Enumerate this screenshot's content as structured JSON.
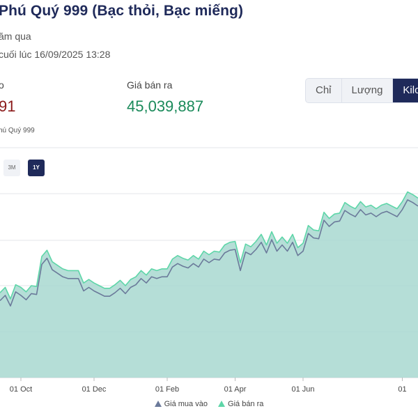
{
  "header": {
    "title": "Phú Quý 999 (Bạc thỏi, Bạc miếng)",
    "subtitle": "ăm qua",
    "updated": "cuối lúc 16/09/2025 13:28"
  },
  "prices": {
    "buy_label": "o",
    "buy_value": "91",
    "sell_label": "Giá bán ra",
    "sell_value": "45,039,887"
  },
  "units": [
    {
      "label": "Chỉ",
      "active": false
    },
    {
      "label": "Lượng",
      "active": false
    },
    {
      "label": "Kilo",
      "active": true
    }
  ],
  "chart_name": "hú Quý 999",
  "ranges": [
    {
      "label": "3M",
      "active": false
    },
    {
      "label": "1Y",
      "active": true
    }
  ],
  "legend": {
    "buy": "Giá mua vào",
    "sell": "Giá bán ra"
  },
  "colors": {
    "buy_line": "#6b7a9a",
    "sell_line": "#5ed6a8",
    "area_fill": "#a8d8d0",
    "accent": "#1f2a5a"
  },
  "chart_data": {
    "type": "area",
    "title": "",
    "xlabel": "",
    "ylabel": "",
    "x_tick_labels": [
      "01 Oct",
      "01 Dec",
      "01 Feb",
      "01 Apr",
      "01 Jun",
      "01"
    ],
    "grid": true,
    "legend_position": "bottom",
    "x": [
      "Sep 15",
      "Sep 18",
      "Sep 22",
      "Sep 26",
      "Oct 1",
      "Oct 5",
      "Oct 10",
      "Oct 14",
      "Oct 18",
      "Oct 22",
      "Oct 26",
      "Oct 30",
      "Nov 3",
      "Nov 8",
      "Nov 12",
      "Nov 16",
      "Nov 20",
      "Nov 25",
      "Dec 1",
      "Dec 5",
      "Dec 9",
      "Dec 13",
      "Dec 17",
      "Dec 21",
      "Dec 25",
      "Dec 30",
      "Jan 4",
      "Jan 9",
      "Jan 14",
      "Jan 19",
      "Jan 24",
      "Jan 29",
      "Feb 1",
      "Feb 5",
      "Feb 10",
      "Feb 14",
      "Feb 18",
      "Feb 22",
      "Feb 27",
      "Mar 3",
      "Mar 8",
      "Mar 13",
      "Mar 18",
      "Mar 23",
      "Mar 28",
      "Apr 1",
      "Apr 4",
      "Apr 8",
      "Apr 12",
      "Apr 17",
      "Apr 22",
      "Apr 27",
      "May 2",
      "May 7",
      "May 12",
      "May 17",
      "May 22",
      "May 27",
      "Jun 1",
      "Jun 5",
      "Jun 10",
      "Jun 15",
      "Jun 20",
      "Jun 25",
      "Jun 30",
      "Jul 5",
      "Jul 10",
      "Jul 15",
      "Jul 20",
      "Jul 25",
      "Jul 30",
      "Aug 4",
      "Aug 9",
      "Aug 14",
      "Aug 19",
      "Aug 24",
      "Aug 29",
      "Sep 3",
      "Sep 8",
      "Sep 13",
      "Sep 16"
    ],
    "series": [
      {
        "name": "Giá mua vào",
        "values": [
          0.87,
          0.93,
          0.81,
          0.97,
          0.93,
          0.88,
          0.95,
          0.94,
          1.28,
          1.35,
          1.22,
          1.18,
          1.14,
          1.12,
          1.12,
          1.12,
          0.98,
          1.02,
          0.98,
          0.95,
          0.92,
          0.92,
          0.96,
          1.01,
          0.95,
          1.02,
          1.05,
          1.12,
          1.07,
          1.14,
          1.12,
          1.14,
          1.14,
          1.25,
          1.29,
          1.26,
          1.24,
          1.29,
          1.25,
          1.34,
          1.3,
          1.34,
          1.33,
          1.41,
          1.44,
          1.45,
          1.21,
          1.42,
          1.39,
          1.45,
          1.53,
          1.41,
          1.56,
          1.43,
          1.5,
          1.43,
          1.53,
          1.38,
          1.43,
          1.63,
          1.58,
          1.57,
          1.78,
          1.71,
          1.76,
          1.77,
          1.89,
          1.85,
          1.82,
          1.9,
          1.84,
          1.86,
          1.82,
          1.86,
          1.88,
          1.85,
          1.82,
          1.9,
          2.01,
          1.98,
          1.94
        ]
      },
      {
        "name": "Giá bán ra",
        "values": [
          0.96,
          1.02,
          0.89,
          1.05,
          1.02,
          0.97,
          1.04,
          1.03,
          1.37,
          1.44,
          1.31,
          1.27,
          1.23,
          1.21,
          1.21,
          1.21,
          1.07,
          1.11,
          1.07,
          1.04,
          1.01,
          1.01,
          1.05,
          1.1,
          1.04,
          1.11,
          1.14,
          1.21,
          1.16,
          1.23,
          1.21,
          1.23,
          1.23,
          1.34,
          1.38,
          1.35,
          1.33,
          1.38,
          1.34,
          1.43,
          1.39,
          1.43,
          1.42,
          1.5,
          1.53,
          1.54,
          1.3,
          1.51,
          1.48,
          1.54,
          1.62,
          1.5,
          1.65,
          1.52,
          1.59,
          1.52,
          1.62,
          1.47,
          1.52,
          1.72,
          1.67,
          1.66,
          1.87,
          1.8,
          1.85,
          1.86,
          1.98,
          1.94,
          1.91,
          1.99,
          1.93,
          1.95,
          1.91,
          1.95,
          1.97,
          1.94,
          1.91,
          1.99,
          2.1,
          2.07,
          2.03
        ]
      }
    ]
  }
}
